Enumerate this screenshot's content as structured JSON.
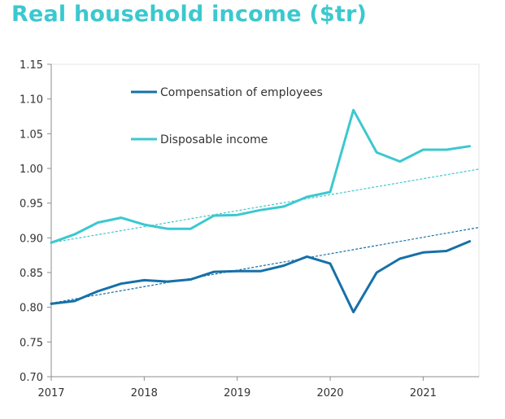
{
  "chart_data": {
    "type": "line",
    "title": "Real household income ($tr)",
    "xlabel": "",
    "ylabel": "",
    "xlim": [
      2017.0,
      2021.6
    ],
    "ylim": [
      0.7,
      1.15
    ],
    "x_ticks": [
      "2017",
      "2018",
      "2019",
      "2020",
      "2021"
    ],
    "y_ticks": [
      "0.70",
      "0.75",
      "0.80",
      "0.85",
      "0.90",
      "0.95",
      "1.00",
      "1.05",
      "1.10",
      "1.15"
    ],
    "x": [
      2017.0,
      2017.25,
      2017.5,
      2017.75,
      2018.0,
      2018.25,
      2018.5,
      2018.75,
      2019.0,
      2019.25,
      2019.5,
      2019.75,
      2020.0,
      2020.25,
      2020.5,
      2020.75,
      2021.0,
      2021.25,
      2021.5
    ],
    "series": [
      {
        "name": "Compensation of employees",
        "color": "#1670a8",
        "values": [
          0.805,
          0.809,
          0.823,
          0.834,
          0.839,
          0.837,
          0.84,
          0.851,
          0.852,
          0.852,
          0.86,
          0.873,
          0.863,
          0.793,
          0.85,
          0.87,
          0.879,
          0.881,
          0.895
        ],
        "trend": [
          0.806,
          0.915
        ]
      },
      {
        "name": "Disposable income",
        "color": "#3cc8cf",
        "values": [
          0.893,
          0.905,
          0.922,
          0.929,
          0.919,
          0.913,
          0.913,
          0.932,
          0.933,
          0.94,
          0.945,
          0.959,
          0.966,
          1.084,
          1.023,
          1.01,
          1.027,
          1.027,
          1.032
        ],
        "trend": [
          0.893,
          0.999
        ]
      }
    ],
    "legend": "top-left",
    "grid": false
  }
}
